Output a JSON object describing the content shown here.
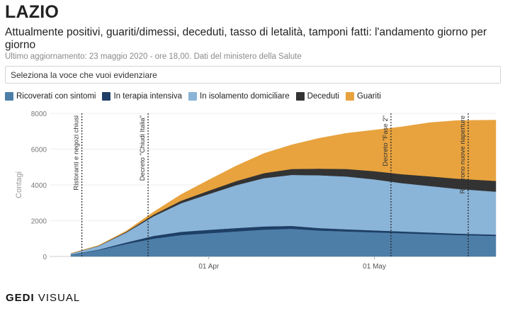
{
  "header": {
    "region": "LAZIO",
    "subtitle": "Attualmente positivi, guariti/dimessi, deceduti, tasso di letalità, tamponi fatti: l'andamento giorno per giorno",
    "updated": "Ultimo aggiornamento: 23 maggio 2020 - ore 18,00. Dati del ministero della Salute"
  },
  "selector": {
    "placeholder": "Seleziona la voce che vuoi evidenziare"
  },
  "footer": {
    "brand": "GEDI",
    "suffix": "VISUAL"
  },
  "chart_data": {
    "type": "area",
    "stacked": true,
    "ylabel": "Contagi",
    "ylim": [
      0,
      8000
    ],
    "yticks": [
      0,
      2000,
      4000,
      6000,
      8000
    ],
    "x_start": "2020-03-07",
    "x_end": "2020-05-23",
    "xticks": [
      {
        "date": "2020-04-01",
        "label": "01 Apr"
      },
      {
        "date": "2020-05-01",
        "label": "01 May"
      }
    ],
    "x_dates": [
      "2020-03-07",
      "2020-03-12",
      "2020-03-17",
      "2020-03-22",
      "2020-03-27",
      "2020-04-01",
      "2020-04-06",
      "2020-04-11",
      "2020-04-16",
      "2020-04-21",
      "2020-04-26",
      "2020-05-01",
      "2020-05-06",
      "2020-05-11",
      "2020-05-16",
      "2020-05-23"
    ],
    "series": [
      {
        "name": "Ricoverati con sintomi",
        "color": "#4d7ea8",
        "values": [
          100,
          350,
          700,
          1000,
          1200,
          1300,
          1400,
          1500,
          1550,
          1450,
          1400,
          1350,
          1300,
          1250,
          1200,
          1150
        ]
      },
      {
        "name": "In terapia intensiva",
        "color": "#1e3f66",
        "values": [
          10,
          30,
          80,
          150,
          180,
          190,
          190,
          180,
          160,
          140,
          120,
          110,
          100,
          90,
          80,
          75
        ]
      },
      {
        "name": "In isolamento domiciliare",
        "color": "#8ab4d8",
        "values": [
          50,
          200,
          550,
          1100,
          1600,
          2000,
          2400,
          2700,
          2850,
          2950,
          2950,
          2850,
          2700,
          2600,
          2500,
          2400
        ]
      },
      {
        "name": "Deceduti",
        "color": "#333333",
        "values": [
          5,
          15,
          40,
          90,
          140,
          190,
          230,
          280,
          330,
          370,
          420,
          460,
          500,
          540,
          570,
          600
        ]
      },
      {
        "name": "Guariti",
        "color": "#e8a33e",
        "values": [
          5,
          20,
          50,
          150,
          350,
          600,
          850,
          1100,
          1350,
          1700,
          2000,
          2300,
          2650,
          3000,
          3250,
          3400
        ]
      }
    ],
    "annotations": [
      {
        "date": "2020-03-09",
        "label": "Ristoranti e negozi chiusi"
      },
      {
        "date": "2020-03-21",
        "label": "Decreto \"Chiudi Italia\""
      },
      {
        "date": "2020-05-04",
        "label": "Decreto \"Fase 2\""
      },
      {
        "date": "2020-05-18",
        "label": "Riaprono nuove riaperture"
      }
    ]
  }
}
